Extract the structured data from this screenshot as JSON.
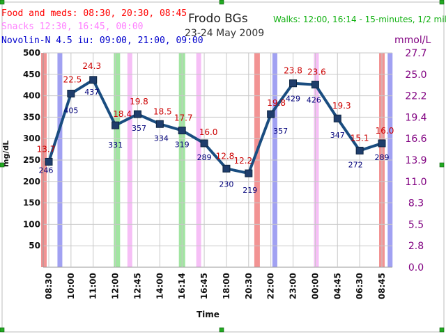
{
  "header": {
    "title": "Frodo BGs",
    "subtitle": "23-24 May 2009",
    "food_meds": "Food and meds: 08:30, 20:30, 08:45",
    "snacks": "Snacks 12:30, 16:45, 00:00",
    "novolin": "Novolin-N 4.5 iu: 09:00, 21:00, 09:00",
    "walks": "Walks: 12:00, 16:14 - 15-minutes, 1/2 mile"
  },
  "colors": {
    "food": "#f08080",
    "snack": "#f4b4f4",
    "novolin": "#9090f0",
    "walk": "#90e090",
    "line": "#1a4d80",
    "marker": "#1f3d6b",
    "mgdl_label": "#00007a",
    "mmol_label": "#cc0000",
    "mmol_axis": "#800080",
    "food_text": "#ff0000",
    "snack_text": "#ff80ff",
    "novolin_text": "#0000cc",
    "walk_text": "#10b010"
  },
  "chart_data": {
    "type": "line",
    "title": "Frodo BGs",
    "subtitle": "23-24 May 2009",
    "xlabel": "Time",
    "ylabel": "mg/dL",
    "y2label": "mmol/L",
    "ylim": [
      0,
      500
    ],
    "y_ticks": [
      50,
      100,
      150,
      200,
      250,
      300,
      350,
      400,
      450,
      500
    ],
    "y2_ticks": [
      "0.0",
      "2.8",
      "5.5",
      "8.3",
      "11.0",
      "13.9",
      "16.6",
      "19.4",
      "22.2",
      "25.0",
      "27.7"
    ],
    "grid": true,
    "categories": [
      "08:30",
      "10:00",
      "11:00",
      "12:00",
      "12:45",
      "14:00",
      "16:14",
      "16:45",
      "18:00",
      "20:30",
      "22:00",
      "23:00",
      "00:00",
      "04:45",
      "06:30",
      "08:45"
    ],
    "series": [
      {
        "values": [
          246,
          405,
          437,
          331,
          357,
          334,
          319,
          289,
          230,
          219,
          357,
          429,
          426,
          347,
          272,
          289
        ],
        "mmol": [
          "13.7",
          "22.5",
          "24.3",
          "18.4",
          "19.8",
          "18.5",
          "17.7",
          "16.0",
          "12.8",
          "12.2",
          "19.8",
          "23.8",
          "23.6",
          "19.3",
          "15.1",
          "16.0"
        ]
      }
    ],
    "event_bands": [
      {
        "type": "food",
        "x": "08:30"
      },
      {
        "type": "novolin",
        "x": "09:00"
      },
      {
        "type": "walk",
        "x": "12:00"
      },
      {
        "type": "snack",
        "x": "12:30"
      },
      {
        "type": "walk",
        "x": "16:14"
      },
      {
        "type": "snack",
        "x": "16:45"
      },
      {
        "type": "food",
        "x": "20:30"
      },
      {
        "type": "novolin",
        "x": "21:00"
      },
      {
        "type": "snack",
        "x": "00:00"
      },
      {
        "type": "food",
        "x": "08:45"
      },
      {
        "type": "novolin",
        "x": "09:00"
      }
    ]
  }
}
